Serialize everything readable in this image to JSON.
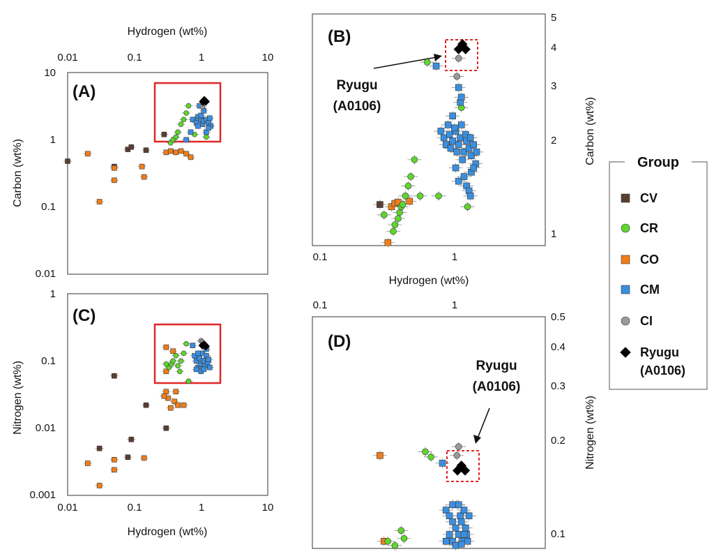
{
  "colors": {
    "CV": "#5a3e33",
    "CR": "#5fd62e",
    "CO": "#f07e1a",
    "CM": "#3a8fe0",
    "CI": "#9a9a9a",
    "Ryugu": "#000000",
    "box": "#e02626"
  },
  "legend": {
    "title": "Group",
    "items": [
      {
        "key": "CV",
        "label": "CV",
        "shape": "square"
      },
      {
        "key": "CR",
        "label": "CR",
        "shape": "circle"
      },
      {
        "key": "CO",
        "label": "CO",
        "shape": "square"
      },
      {
        "key": "CM",
        "label": "CM",
        "shape": "square"
      },
      {
        "key": "CI",
        "label": "CI",
        "shape": "circle"
      },
      {
        "key": "Ryugu",
        "label": "Ryugu",
        "label2": "(A0106)",
        "shape": "diamond"
      }
    ]
  },
  "chart_data": [
    {
      "id": "A",
      "type": "scatter",
      "panel_label": "(A)",
      "xlabel": "Hydrogen (wt%)",
      "ylabel": "Carbon (wt%)",
      "xlim": [
        0.01,
        10
      ],
      "ylim": [
        0.01,
        10
      ],
      "xticks": [
        "0.01",
        "0.1",
        "1",
        "10"
      ],
      "yticks": [
        "0.01",
        "0.1",
        "1",
        "10"
      ],
      "series": [
        {
          "group": "CV",
          "points": [
            [
              0.01,
              0.48
            ],
            [
              0.05,
              0.4
            ],
            [
              0.08,
              0.72
            ],
            [
              0.09,
              0.78
            ],
            [
              0.15,
              0.7
            ],
            [
              0.28,
              1.2
            ]
          ]
        },
        {
          "group": "CO",
          "points": [
            [
              0.02,
              0.62
            ],
            [
              0.03,
              0.12
            ],
            [
              0.05,
              0.38
            ],
            [
              0.05,
              0.25
            ],
            [
              0.13,
              0.4
            ],
            [
              0.14,
              0.28
            ],
            [
              0.3,
              0.65
            ],
            [
              0.35,
              0.68
            ],
            [
              0.42,
              0.65
            ],
            [
              0.5,
              0.68
            ],
            [
              0.7,
              0.55
            ],
            [
              0.6,
              0.62
            ]
          ]
        },
        {
          "group": "CR",
          "points": [
            [
              0.35,
              0.9
            ],
            [
              0.38,
              1.0
            ],
            [
              0.42,
              1.1
            ],
            [
              0.45,
              1.3
            ],
            [
              0.5,
              1.7
            ],
            [
              0.55,
              2.0
            ],
            [
              0.6,
              2.5
            ],
            [
              0.65,
              3.2
            ],
            [
              0.8,
              1.2
            ],
            [
              1.2,
              1.1
            ]
          ]
        },
        {
          "group": "CM",
          "points": [
            [
              0.75,
              2.0
            ],
            [
              0.85,
              1.8
            ],
            [
              0.9,
              2.2
            ],
            [
              1.0,
              2.0
            ],
            [
              1.05,
              1.7
            ],
            [
              1.1,
              1.9
            ],
            [
              1.2,
              2.0
            ],
            [
              1.3,
              1.8
            ],
            [
              1.4,
              1.6
            ],
            [
              1.0,
              2.3
            ],
            [
              1.1,
              2.7
            ],
            [
              0.95,
              3.2
            ],
            [
              1.2,
              1.3
            ],
            [
              1.3,
              1.5
            ],
            [
              0.9,
              1.6
            ],
            [
              1.35,
              2.1
            ],
            [
              0.6,
              1.0
            ],
            [
              0.7,
              1.3
            ]
          ]
        },
        {
          "group": "CI",
          "points": [
            [
              1.05,
              3.1
            ],
            [
              1.1,
              3.5
            ]
          ]
        },
        {
          "group": "Ryugu",
          "points": [
            [
              1.07,
              3.7
            ],
            [
              1.12,
              3.9
            ],
            [
              1.18,
              3.7
            ]
          ]
        }
      ]
    },
    {
      "id": "B",
      "type": "scatter",
      "panel_label": "(B)",
      "xlabel": "Hydrogen (wt%)",
      "ylabel": "Carbon (wt%)",
      "xlim": [
        0.09,
        4.5
      ],
      "ylim": [
        0.9,
        5
      ],
      "xticks": [
        "0.1",
        "1"
      ],
      "yticks": [
        "1",
        "2",
        "3",
        "4",
        "5"
      ],
      "annotation": "Ryugu",
      "annotation2": "(A0106)",
      "series": [
        {
          "group": "CV",
          "points": [
            [
              0.28,
              1.22
            ]
          ]
        },
        {
          "group": "CO",
          "points": [
            [
              0.32,
              0.92
            ],
            [
              0.34,
              1.2
            ],
            [
              0.36,
              1.23
            ],
            [
              0.38,
              1.24
            ],
            [
              0.46,
              1.25
            ]
          ]
        },
        {
          "group": "CR",
          "points": [
            [
              0.3,
              1.13
            ],
            [
              0.35,
              1.0
            ],
            [
              0.36,
              1.05
            ],
            [
              0.38,
              1.1
            ],
            [
              0.39,
              1.15
            ],
            [
              0.4,
              1.2
            ],
            [
              0.41,
              1.22
            ],
            [
              0.43,
              1.3
            ],
            [
              0.45,
              1.4
            ],
            [
              0.47,
              1.5
            ],
            [
              0.5,
              1.7
            ],
            [
              0.55,
              1.3
            ],
            [
              0.62,
              3.5
            ],
            [
              0.75,
              1.3
            ],
            [
              1.22,
              1.2
            ],
            [
              1.1,
              2.5
            ]
          ]
        },
        {
          "group": "CM",
          "points": [
            [
              0.72,
              3.4
            ],
            [
              0.78,
              2.1
            ],
            [
              0.82,
              2.0
            ],
            [
              0.85,
              1.9
            ],
            [
              0.88,
              2.2
            ],
            [
              0.9,
              2.05
            ],
            [
              0.92,
              1.85
            ],
            [
              0.95,
              1.95
            ],
            [
              1.0,
              2.1
            ],
            [
              1.02,
              1.8
            ],
            [
              1.05,
              1.9
            ],
            [
              1.08,
              2.0
            ],
            [
              1.1,
              2.2
            ],
            [
              1.12,
              1.7
            ],
            [
              1.15,
              1.8
            ],
            [
              1.18,
              2.05
            ],
            [
              1.2,
              1.95
            ],
            [
              1.25,
              1.85
            ],
            [
              1.28,
              2.0
            ],
            [
              1.3,
              1.75
            ],
            [
              1.35,
              1.9
            ],
            [
              1.4,
              1.65
            ],
            [
              1.42,
              1.8
            ],
            [
              1.0,
              1.6
            ],
            [
              1.05,
              1.45
            ],
            [
              1.15,
              1.5
            ],
            [
              1.2,
              1.4
            ],
            [
              1.25,
              1.35
            ],
            [
              1.28,
              1.3
            ],
            [
              1.3,
              1.55
            ],
            [
              1.35,
              1.6
            ],
            [
              1.08,
              2.6
            ],
            [
              1.1,
              2.7
            ],
            [
              1.05,
              2.9
            ],
            [
              0.98,
              2.15
            ],
            [
              0.95,
              2.35
            ]
          ]
        },
        {
          "group": "CI",
          "points": [
            [
              1.02,
              3.15
            ],
            [
              1.05,
              3.6
            ]
          ]
        },
        {
          "group": "Ryugu",
          "points": [
            [
              1.05,
              3.85
            ],
            [
              1.12,
              4.0
            ],
            [
              1.18,
              3.85
            ]
          ]
        }
      ]
    },
    {
      "id": "C",
      "type": "scatter",
      "panel_label": "(C)",
      "xlabel": "Hydrogen (wt%)",
      "ylabel": "Nitrogen (wt%)",
      "xlim": [
        0.01,
        10
      ],
      "ylim": [
        0.001,
        1
      ],
      "xticks": [
        "0.01",
        "0.1",
        "1",
        "10"
      ],
      "yticks": [
        "0.001",
        "0.01",
        "0.1",
        "1"
      ],
      "series": [
        {
          "group": "CV",
          "points": [
            [
              0.03,
              0.005
            ],
            [
              0.05,
              0.06
            ],
            [
              0.08,
              0.0037
            ],
            [
              0.09,
              0.0068
            ],
            [
              0.15,
              0.022
            ],
            [
              0.3,
              0.01
            ]
          ]
        },
        {
          "group": "CO",
          "points": [
            [
              0.02,
              0.003
            ],
            [
              0.03,
              0.0014
            ],
            [
              0.05,
              0.0034
            ],
            [
              0.05,
              0.0024
            ],
            [
              0.14,
              0.0036
            ],
            [
              0.3,
              0.035
            ],
            [
              0.32,
              0.028
            ],
            [
              0.35,
              0.02
            ],
            [
              0.4,
              0.025
            ],
            [
              0.45,
              0.022
            ],
            [
              0.55,
              0.022
            ],
            [
              0.28,
              0.03
            ],
            [
              0.42,
              0.035
            ],
            [
              0.3,
              0.07
            ],
            [
              0.3,
              0.16
            ],
            [
              0.38,
              0.14
            ]
          ]
        },
        {
          "group": "CR",
          "points": [
            [
              0.33,
              0.08
            ],
            [
              0.36,
              0.09
            ],
            [
              0.38,
              0.1
            ],
            [
              0.42,
              0.12
            ],
            [
              0.45,
              0.085
            ],
            [
              0.5,
              0.1
            ],
            [
              0.55,
              0.13
            ],
            [
              0.6,
              0.18
            ],
            [
              0.65,
              0.05
            ],
            [
              0.3,
              0.09
            ],
            [
              0.48,
              0.07
            ]
          ]
        },
        {
          "group": "CM",
          "points": [
            [
              0.75,
              0.17
            ],
            [
              0.8,
              0.12
            ],
            [
              0.85,
              0.1
            ],
            [
              0.9,
              0.08
            ],
            [
              0.95,
              0.11
            ],
            [
              1.0,
              0.09
            ],
            [
              1.05,
              0.13
            ],
            [
              1.1,
              0.1
            ],
            [
              1.15,
              0.085
            ],
            [
              1.2,
              0.12
            ],
            [
              1.25,
              0.095
            ],
            [
              1.3,
              0.105
            ],
            [
              1.35,
              0.08
            ],
            [
              0.9,
              0.13
            ],
            [
              1.0,
              0.07
            ],
            [
              1.1,
              0.075
            ],
            [
              1.2,
              0.15
            ],
            [
              0.85,
              0.075
            ]
          ]
        },
        {
          "group": "CI",
          "points": [
            [
              1.0,
              0.2
            ],
            [
              1.05,
              0.19
            ]
          ]
        },
        {
          "group": "Ryugu",
          "points": [
            [
              1.05,
              0.17
            ],
            [
              1.12,
              0.175
            ],
            [
              1.18,
              0.165
            ]
          ]
        }
      ]
    },
    {
      "id": "D",
      "type": "scatter",
      "panel_label": "(D)",
      "xlabel": "",
      "ylabel": "Nitrogen (wt%)",
      "xlim": [
        0.09,
        4.5
      ],
      "ylim": [
        0.095,
        0.5
      ],
      "xticks": [
        "0.1",
        "1"
      ],
      "yticks": [
        "0.1",
        "0.2",
        "0.3",
        "0.4",
        "0.5"
      ],
      "annotation": "Ryugu",
      "annotation2": "(A0106)",
      "series": [
        {
          "group": "CO",
          "points": [
            [
              0.28,
              0.185
            ],
            [
              0.3,
              0.1
            ]
          ]
        },
        {
          "group": "CR",
          "points": [
            [
              0.32,
              0.1
            ],
            [
              0.36,
              0.097
            ],
            [
              0.4,
              0.108
            ],
            [
              0.42,
              0.102
            ],
            [
              0.6,
              0.19
            ],
            [
              0.66,
              0.183
            ]
          ]
        },
        {
          "group": "CM",
          "points": [
            [
              0.8,
              0.175
            ],
            [
              0.85,
              0.125
            ],
            [
              0.9,
              0.12
            ],
            [
              0.95,
              0.115
            ],
            [
              1.0,
              0.11
            ],
            [
              1.02,
              0.13
            ],
            [
              1.05,
              0.105
            ],
            [
              1.08,
              0.12
            ],
            [
              1.1,
              0.115
            ],
            [
              1.12,
              0.1
            ],
            [
              1.15,
              0.125
            ],
            [
              1.18,
              0.11
            ],
            [
              1.2,
              0.105
            ],
            [
              1.22,
              0.1
            ],
            [
              0.95,
              0.1
            ],
            [
              0.9,
              0.105
            ],
            [
              1.0,
              0.097
            ],
            [
              1.1,
              0.098
            ],
            [
              1.25,
              0.12
            ],
            [
              0.85,
              0.1
            ],
            [
              1.05,
              0.13
            ],
            [
              0.95,
              0.13
            ],
            [
              1.15,
              0.105
            ]
          ]
        },
        {
          "group": "CI",
          "points": [
            [
              1.05,
              0.197
            ],
            [
              1.02,
              0.185
            ]
          ]
        },
        {
          "group": "Ryugu",
          "points": [
            [
              1.03,
              0.166
            ],
            [
              1.1,
              0.172
            ],
            [
              1.17,
              0.166
            ]
          ]
        }
      ]
    }
  ]
}
